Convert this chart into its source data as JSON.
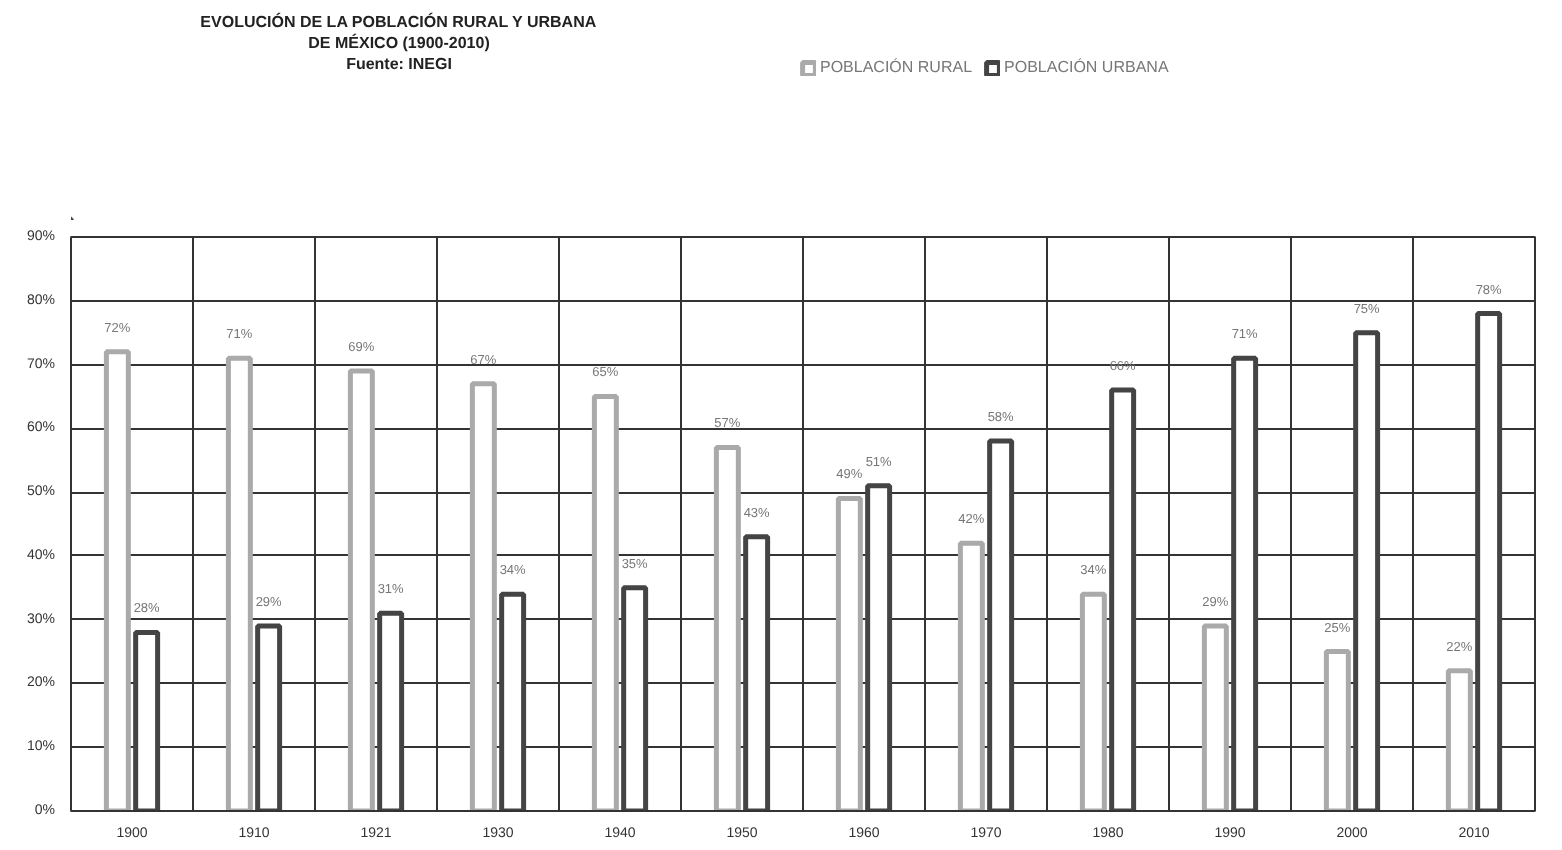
{
  "chart_data": {
    "type": "bar",
    "title": "EVOLUCIÓN DE LA POBLACIÓN RURAL Y URBANA\nDE MÉXICO (1900-2010)",
    "annotations": [
      "Fuente: INEGI"
    ],
    "categories": [
      "1900",
      "1910",
      "1921",
      "1930",
      "1940",
      "1950",
      "1960",
      "1970",
      "1980",
      "1990",
      "2000",
      "2010"
    ],
    "series": [
      {
        "name": "POBLACIÓN RURAL",
        "color": "#aaaaaa",
        "values": [
          72,
          71,
          69,
          67,
          65,
          57,
          49,
          42,
          34,
          29,
          25,
          22
        ],
        "value_labels": [
          "72%",
          "71%",
          "69%",
          "67%",
          "65%",
          "57%",
          "49%",
          "42%",
          "34%",
          "29%",
          "25%",
          "22%"
        ]
      },
      {
        "name": "POBLACIÓN URBANA",
        "color": "#444444",
        "values": [
          28,
          29,
          31,
          34,
          35,
          43,
          51,
          58,
          66,
          71,
          75,
          78
        ],
        "value_labels": [
          "28%",
          "29%",
          "31%",
          "34%",
          "35%",
          "43%",
          "51%",
          "58%",
          "66%",
          "71%",
          "75%",
          "78%"
        ]
      }
    ],
    "ylim": [
      0,
      90
    ],
    "yticks": [
      {
        "value": 0,
        "label": "0%"
      },
      {
        "value": 10,
        "label": "10%"
      },
      {
        "value": 20,
        "label": "20%"
      },
      {
        "value": 30,
        "label": "30%"
      },
      {
        "value": 40,
        "label": "40%"
      },
      {
        "value": 50,
        "label": "50%"
      },
      {
        "value": 60,
        "label": "60%"
      },
      {
        "value": 70,
        "label": "70%"
      },
      {
        "value": 80,
        "label": "80%"
      },
      {
        "value": 90,
        "label": "90%"
      }
    ],
    "grid": true,
    "legend": "top"
  }
}
